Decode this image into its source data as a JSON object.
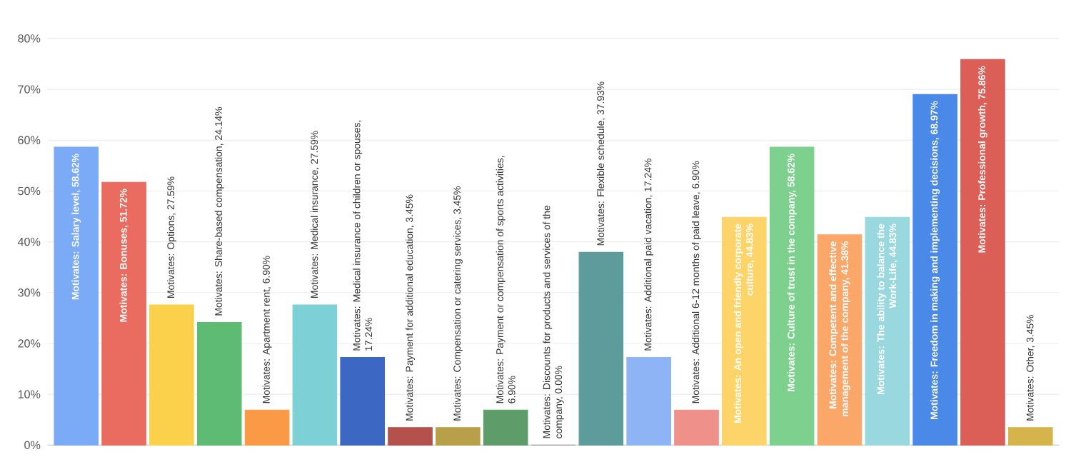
{
  "chart_data": {
    "type": "bar",
    "categories": [
      null,
      null,
      null,
      null,
      null,
      null,
      null,
      null,
      null,
      null,
      null,
      null,
      null,
      null,
      null,
      null,
      null,
      null,
      null,
      null,
      null
    ],
    "values": [
      58.62,
      51.72,
      27.59,
      24.14,
      6.9,
      27.59,
      17.24,
      3.45,
      3.45,
      6.9,
      0.0,
      37.93,
      17.24,
      6.9,
      44.83,
      58.62,
      41.38,
      44.83,
      68.97,
      75.86,
      3.45
    ],
    "value_labels": [
      "Motivates: Salary level, 58.62%",
      "Motivates: Bonuses, 51.72%",
      "Motivates: Options, 27.59%",
      "Motivates: Share-based compensation, 24.14%",
      "Motivates: Apartment rent, 6.90%",
      "Motivates: Medical insurance, 27.59%",
      "Motivates: Medical insurance of children or spouses, 17.24%",
      "Motivates: Payment for additional education, 3.45%",
      "Motivates: Compensation or catering services, 3.45%",
      "Motivates: Payment or compensation of sports activities, 6.90%",
      "Motivates: Discounts for products and services of the company, 0.00%",
      "Motivates: Flexible schedule, 37.93%",
      "Motivates: Additional paid vacation, 17.24%",
      "Motivates: Additional 6-12 months of paid leave, 6.90%",
      "Motivates: An open and friendly corporate culture, 44.83%",
      "Motivates: Culture of trust in the company, 58.62%",
      "Motivates: Competent and effective management of the company, 41.38%",
      "Motivates: The ability to balance the Work-Life, 44.83%",
      "Motivates: Freedom in making and implementing decisions, 68.97%",
      "Motivates: Professional growth, 75.86%",
      "Motivates: Other, 3.45%"
    ],
    "colors": [
      "#7baaf7",
      "#ea6b5f",
      "#fbd04b",
      "#5dbb74",
      "#fb9a46",
      "#7dd1d6",
      "#3c68c4",
      "#b5514c",
      "#b8a04b",
      "#5e9c6a",
      "#9e9e9e",
      "#5e9c9c",
      "#8fb4f5",
      "#f0908a",
      "#fcd46a",
      "#7ed08e",
      "#fca76a",
      "#98d8de",
      "#4a89e8",
      "#dc5f57",
      "#d6b44c"
    ],
    "ylim": [
      0,
      80
    ],
    "yticks": [
      {
        "value": 0,
        "label": "0%"
      },
      {
        "value": 10,
        "label": "10%"
      },
      {
        "value": 20,
        "label": "20%"
      },
      {
        "value": 30,
        "label": "30%"
      },
      {
        "value": 40,
        "label": "40%"
      },
      {
        "value": 50,
        "label": "50%"
      },
      {
        "value": 60,
        "label": "60%"
      },
      {
        "value": 70,
        "label": "70%"
      },
      {
        "value": 80,
        "label": "80%"
      }
    ],
    "grid": "y"
  }
}
